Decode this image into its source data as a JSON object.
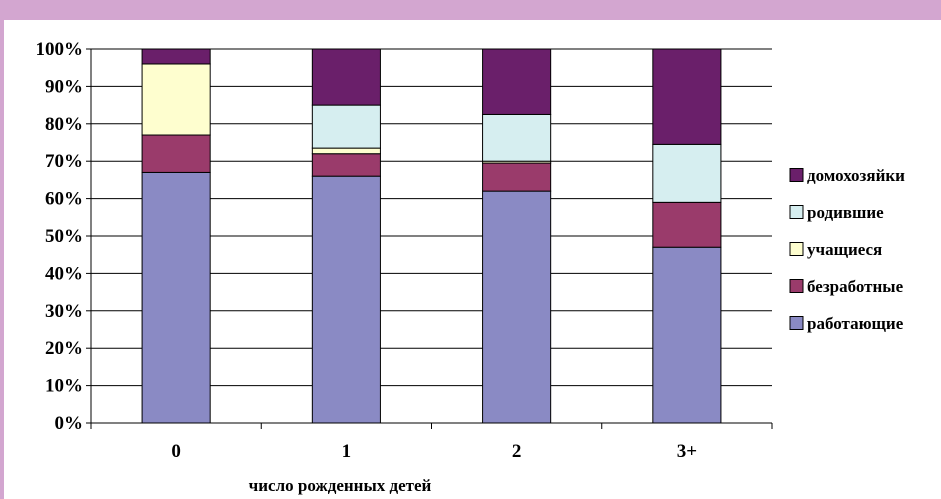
{
  "chart_data": {
    "type": "bar",
    "stacked": true,
    "percent": true,
    "categories": [
      "0",
      "1",
      "2",
      "3+"
    ],
    "xlabel": "число рожденных детей",
    "ylabel": "",
    "ylim": [
      0,
      100
    ],
    "yticks": [
      "0%",
      "10%",
      "20%",
      "30%",
      "40%",
      "50%",
      "60%",
      "70%",
      "80%",
      "90%",
      "100%"
    ],
    "grid": true,
    "legend_position": "right",
    "series": [
      {
        "name": "работающие",
        "color": "#8a8ac4",
        "values": [
          67,
          66,
          62,
          47
        ]
      },
      {
        "name": "безработные",
        "color": "#9a3b6b",
        "values": [
          10,
          6,
          7.5,
          12
        ]
      },
      {
        "name": "учащиеся",
        "color": "#fefecf",
        "values": [
          19,
          1.5,
          0.5,
          0
        ]
      },
      {
        "name": "родившие",
        "color": "#d6eef0",
        "values": [
          0,
          11.5,
          12.5,
          15.5
        ]
      },
      {
        "name": "домохозяйки",
        "color": "#6a1f6a",
        "values": [
          4,
          15,
          17.5,
          25.5
        ]
      }
    ]
  }
}
